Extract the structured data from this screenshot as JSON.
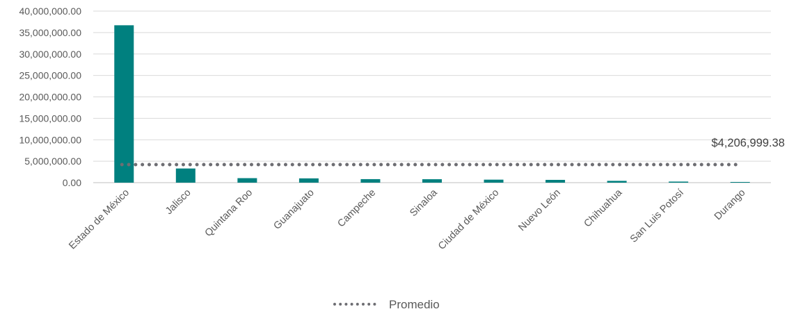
{
  "chart_data": {
    "type": "bar",
    "title": "",
    "xlabel": "",
    "ylabel": "",
    "ylim": [
      0,
      40000000
    ],
    "yticks": [
      "0.00",
      "5,000,000.00",
      "10,000,000.00",
      "15,000,000.00",
      "20,000,000.00",
      "25,000,000.00",
      "30,000,000.00",
      "35,000,000.00",
      "40,000,000.00"
    ],
    "categories": [
      "Estado de México",
      "Jalisco",
      "Quintana Roo",
      "Guanajuato",
      "Campeche",
      "Sinaloa",
      "Ciudad de México",
      "Nuevo León",
      "Chihuahua",
      "San Luis Potosí",
      "Durango"
    ],
    "values": [
      36700000,
      3300000,
      1050000,
      1000000,
      820000,
      800000,
      700000,
      650000,
      420000,
      250000,
      50000
    ],
    "bar_color": "#00807F",
    "average": {
      "name": "Promedio",
      "value": 4206999.38,
      "label": "$4,206,999.38",
      "color": "#6E6E73",
      "style": "dotted"
    },
    "grid": true,
    "legend": "bottom-center"
  }
}
